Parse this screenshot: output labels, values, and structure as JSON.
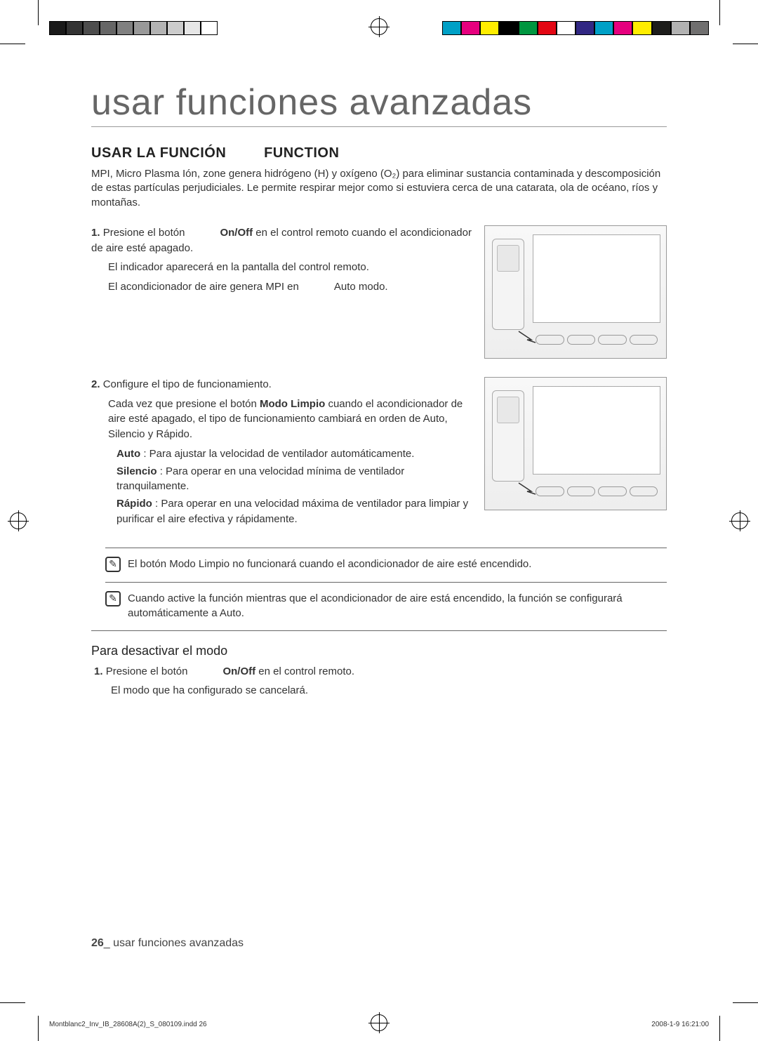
{
  "print_marks": {
    "gray_swatches": [
      "#1a1a1a",
      "#333333",
      "#4d4d4d",
      "#666666",
      "#808080",
      "#999999",
      "#b3b3b3",
      "#cccccc",
      "#e6e6e6",
      "#ffffff"
    ],
    "color_swatches": [
      "#00a0c6",
      "#e6007e",
      "#ffed00",
      "#000000",
      "#009640",
      "#e30613",
      "#ffffff",
      "#312783",
      "#00a0c6",
      "#e6007e",
      "#ffed00",
      "#1d1d1b",
      "#b2b2b2",
      "#706f6f"
    ]
  },
  "page": {
    "main_title": "usar funciones avanzadas",
    "section_heading_a": "USAR LA FUNCIÓN",
    "section_heading_b": "FUNCTION",
    "intro": "MPI, Micro Plasma Ión, zone genera hidrógeno (H) y oxígeno (O₂) para eliminar sustancia contaminada y descomposición de estas partículas perjudiciales. Le permite respirar mejor como si estuviera cerca de una catarata, ola de océano, ríos y montañas.",
    "step1": {
      "num": "1.",
      "line1a": "Presione el botón ",
      "line1b": "On/Off",
      "line1c": " en el control remoto cuando el acondicionador de aire esté apagado.",
      "line2": "El indicador            aparecerá en la pantalla del control remoto.",
      "line3a": "El acondicionador de aire genera MPI en ",
      "line3b": "Auto",
      "line3c": " modo."
    },
    "step2": {
      "num": "2.",
      "line1": "Configure el tipo de funcionamiento.",
      "line2a": "Cada vez que presione el botón ",
      "line2b": "Modo Limpio",
      "line2c": " cuando el acondicionador de aire esté apagado, el tipo de funcionamiento cambiará en orden de Auto, Silencio y Rápido.",
      "auto_label": "Auto",
      "auto_text": " : Para ajustar la velocidad de ventilador automáticamente.",
      "silencio_label": "Silencio",
      "silencio_text": " : Para operar en una velocidad mínima de ventilador tranquilamente.",
      "rapido_label": "Rápido",
      "rapido_text": " : Para operar en una velocidad máxima de ventilador para limpiar y purificar el aire efectiva y rápidamente."
    },
    "note1a": "El botón ",
    "note1b": "Modo Limpio",
    "note1c": " no funcionará cuando el acondicionador de aire esté encendido.",
    "note2": "Cuando active la función            mientras que el acondicionador de aire está encendido, la función            se configurará automáticamente a Auto.",
    "deactivate_heading": "Para desactivar el modo",
    "deact": {
      "num": "1.",
      "line1a": "Presione el botón ",
      "line1b": "On/Off",
      "line1c": " en el control remoto.",
      "line2": "El modo            que ha configurado se cancelará."
    },
    "footer_page": "26",
    "footer_sep": "_",
    "footer_text": " usar funciones avanzadas",
    "imprint_file": "Montblanc2_Inv_IB_28608A(2)_S_080109.indd   26",
    "imprint_date": "2008-1-9   16:21:00"
  }
}
